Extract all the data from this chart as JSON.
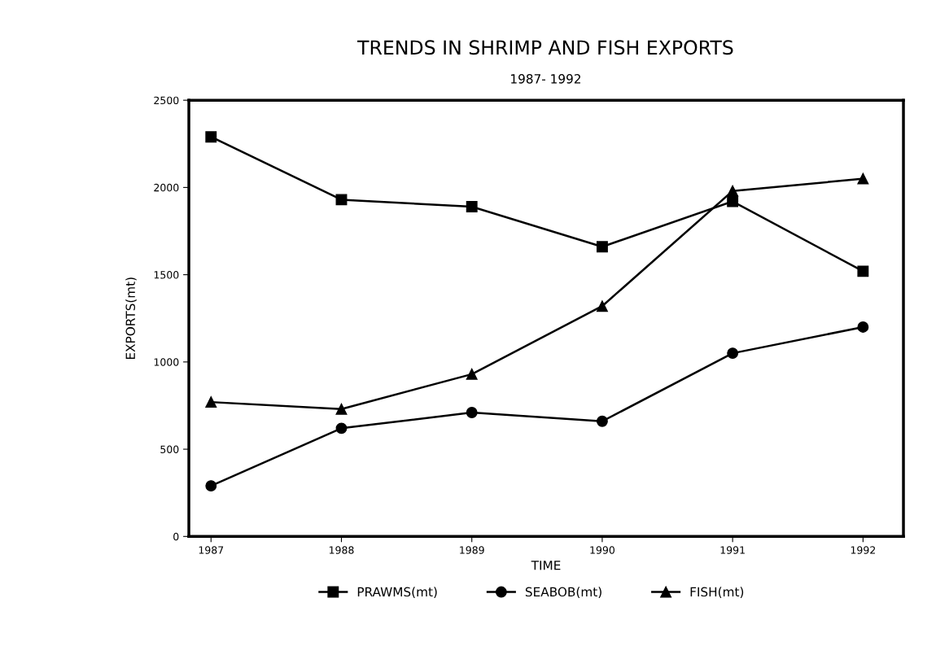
{
  "chart_data": {
    "type": "line",
    "title": "TRENDS IN SHRIMP AND FISH EXPORTS",
    "subtitle": "1987- 1992",
    "xlabel": "TIME",
    "ylabel": "EXPORTS(mt)",
    "x": [
      1987,
      1988,
      1989,
      1990,
      1991,
      1992
    ],
    "series": [
      {
        "name": "PRAWMS(mt)",
        "color": "#000000",
        "marker": "square",
        "values": [
          2290,
          1930,
          1890,
          1660,
          1920,
          1520
        ]
      },
      {
        "name": "SEABOB(mt)",
        "color": "#000000",
        "marker": "circle",
        "values": [
          290,
          620,
          710,
          660,
          1050,
          1200
        ]
      },
      {
        "name": "FISH(mt)",
        "color": "#000000",
        "marker": "triangle",
        "values": [
          770,
          730,
          930,
          1320,
          1980,
          2050
        ]
      }
    ],
    "xlim": [
      1986.83,
      1992.31
    ],
    "xticks": [
      1987,
      1988,
      1989,
      1990,
      1991,
      1992
    ],
    "ylim": [
      0,
      2500
    ],
    "yticks": [
      0,
      500,
      1000,
      1500,
      2000,
      2500
    ],
    "grid": false,
    "legend": "bottom",
    "line_style": "solid"
  }
}
